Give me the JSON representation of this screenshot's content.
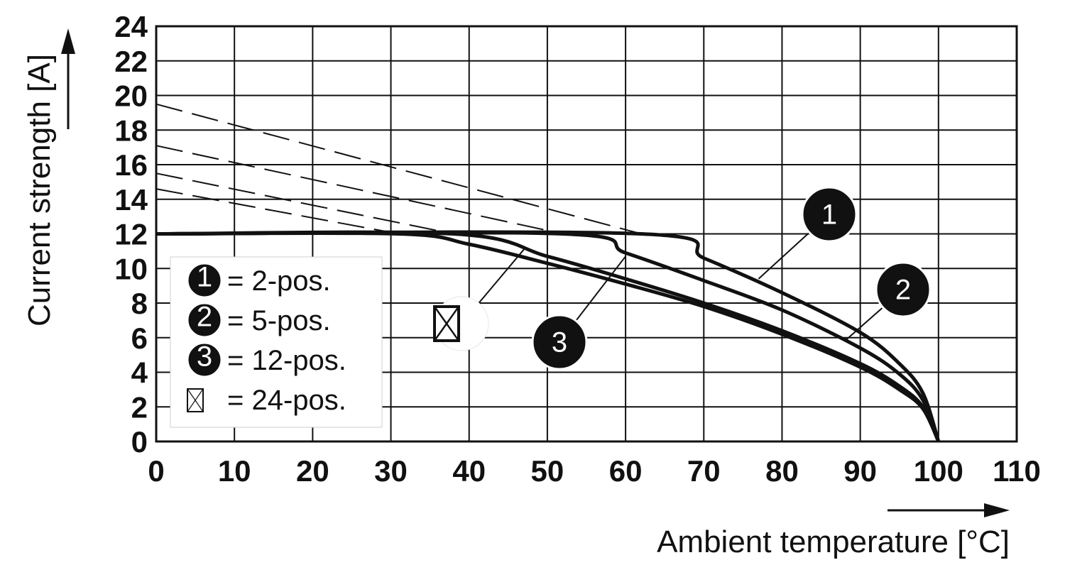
{
  "chart_data": {
    "type": "line",
    "xlabel": "Ambient temperature [°C]",
    "ylabel": "Current strength [A]",
    "xlim": [
      0,
      110
    ],
    "ylim": [
      0,
      24
    ],
    "xticks": [
      0,
      10,
      20,
      30,
      40,
      50,
      60,
      70,
      80,
      90,
      100,
      110
    ],
    "yticks": [
      0,
      2,
      4,
      6,
      8,
      10,
      12,
      14,
      16,
      18,
      20,
      22,
      24
    ],
    "grid": true,
    "series": [
      {
        "name": "2-pos.",
        "marker": "1",
        "x": [
          0,
          62,
          70,
          80,
          90,
          95,
          98,
          100
        ],
        "y": [
          12,
          12,
          10.6,
          8.6,
          6.3,
          4.5,
          2.8,
          0
        ]
      },
      {
        "name": "5-pos.",
        "marker": "2",
        "x": [
          0,
          52,
          60,
          70,
          80,
          90,
          95,
          98,
          100
        ],
        "y": [
          12,
          12,
          10.9,
          9.3,
          7.6,
          5.4,
          3.9,
          2.4,
          0
        ]
      },
      {
        "name": "12-pos.",
        "marker": "3",
        "x": [
          0,
          38,
          50,
          60,
          70,
          80,
          90,
          95,
          98,
          100
        ],
        "y": [
          12,
          12,
          10.7,
          9.4,
          8.0,
          6.4,
          4.5,
          3.2,
          2.0,
          0
        ]
      },
      {
        "name": "24-pos.",
        "marker": "crossed-box",
        "x": [
          0,
          31,
          40,
          50,
          60,
          70,
          80,
          90,
          95,
          98,
          100
        ],
        "y": [
          12,
          12,
          11.4,
          10.3,
          9.1,
          7.8,
          6.2,
          4.3,
          3.0,
          1.9,
          0
        ]
      }
    ],
    "extrapolations": [
      {
        "series": "2-pos.",
        "x": [
          0,
          62
        ],
        "y": [
          19.5,
          12
        ]
      },
      {
        "series": "5-pos.",
        "x": [
          0,
          52
        ],
        "y": [
          17.1,
          12
        ]
      },
      {
        "series": "12-pos.",
        "x": [
          0,
          38
        ],
        "y": [
          15.5,
          12
        ]
      },
      {
        "series": "24-pos.",
        "x": [
          0,
          31
        ],
        "y": [
          14.6,
          12
        ]
      }
    ],
    "legend": {
      "position": "lower-left",
      "entries": [
        {
          "marker": "1",
          "text": "= 2-pos."
        },
        {
          "marker": "2",
          "text": "= 5-pos."
        },
        {
          "marker": "3",
          "text": "= 12-pos."
        },
        {
          "marker": "crossed-box",
          "text": "= 24-pos."
        }
      ]
    },
    "callouts": [
      {
        "marker": "1",
        "series": "2-pos."
      },
      {
        "marker": "2",
        "series": "5-pos."
      },
      {
        "marker": "3",
        "series": "12-pos."
      },
      {
        "marker": "crossed-box",
        "series": "24-pos."
      }
    ]
  }
}
